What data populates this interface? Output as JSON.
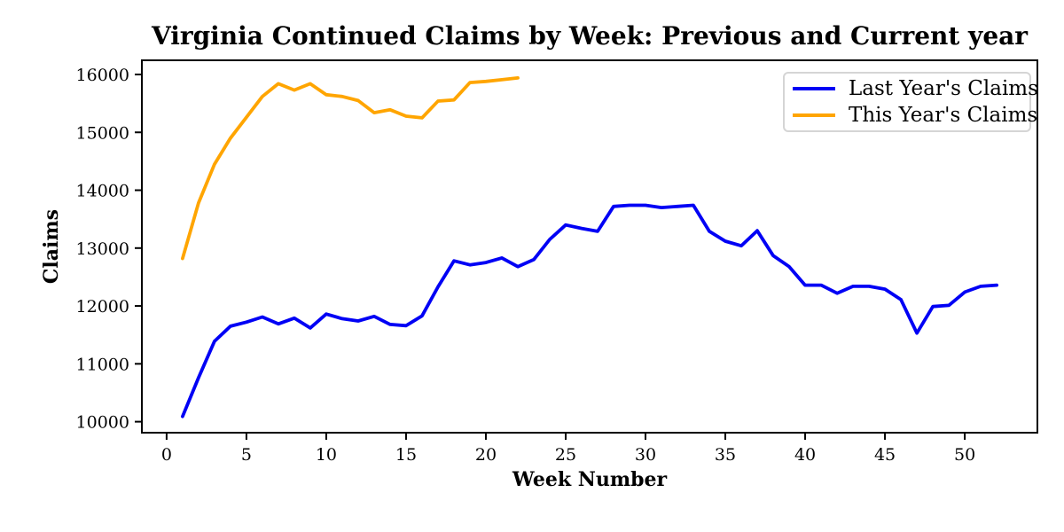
{
  "chart_data": {
    "type": "line",
    "title": "Virginia Continued Claims by Week: Previous and Current year",
    "xlabel": "Week Number",
    "ylabel": "Claims",
    "grid": false,
    "legend_position": "upper right",
    "xlim": [
      -1.55,
      54.55
    ],
    "ylim": [
      9810,
      16245
    ],
    "xticks": [
      0,
      5,
      10,
      15,
      20,
      25,
      30,
      35,
      40,
      45,
      50
    ],
    "yticks": [
      10000,
      11000,
      12000,
      13000,
      14000,
      15000,
      16000
    ],
    "x": [
      1,
      2,
      3,
      4,
      5,
      6,
      7,
      8,
      9,
      10,
      11,
      12,
      13,
      14,
      15,
      16,
      17,
      18,
      19,
      20,
      21,
      22,
      23,
      24,
      25,
      26,
      27,
      28,
      29,
      30,
      31,
      32,
      33,
      34,
      35,
      36,
      37,
      38,
      39,
      40,
      41,
      42,
      43,
      44,
      45,
      46,
      47,
      48,
      49,
      50,
      51,
      52
    ],
    "series": [
      {
        "name": "Last Year's Claims",
        "color": "#0000f5",
        "values": [
          10090,
          10760,
          11390,
          11650,
          11720,
          11810,
          11690,
          11790,
          11620,
          11860,
          11780,
          11740,
          11820,
          11680,
          11660,
          11830,
          12330,
          12780,
          12710,
          12750,
          12830,
          12680,
          12800,
          13150,
          13400,
          13340,
          13290,
          13720,
          13740,
          13740,
          13700,
          13720,
          13740,
          13290,
          13120,
          13040,
          13300,
          12870,
          12680,
          12360,
          12360,
          12220,
          12340,
          12340,
          12290,
          12110,
          11530,
          11990,
          12010,
          12240,
          12340,
          12360
        ]
      },
      {
        "name": "This Year's Claims",
        "color": "#ffa500",
        "values": [
          12820,
          13780,
          14450,
          14900,
          15260,
          15620,
          15840,
          15730,
          15840,
          15650,
          15620,
          15550,
          15340,
          15390,
          15280,
          15250,
          15540,
          15560,
          15860,
          15880,
          15910,
          15940
        ]
      }
    ]
  }
}
